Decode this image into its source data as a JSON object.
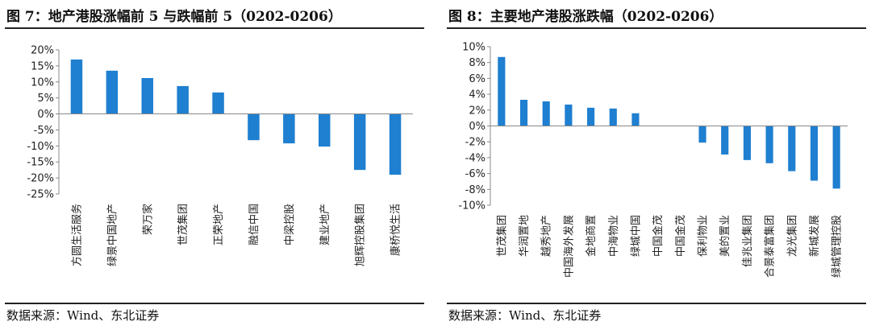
{
  "left": {
    "title": "图 7：地产港股涨幅前 5 与跌幅前 5（0202-0206）",
    "source": "数据来源：Wind、东北证券",
    "chart_data": {
      "type": "bar",
      "categories": [
        "方圆生活服务",
        "绿景中国地产",
        "荣万家",
        "世茂集团",
        "正荣地产",
        "融信中国",
        "中梁控股",
        "建业地产",
        "旭辉控股集团",
        "康桥悦生活"
      ],
      "values": [
        17.0,
        13.5,
        11.2,
        8.7,
        6.7,
        -8.2,
        -9.2,
        -10.2,
        -17.5,
        -19.0
      ],
      "ylim": [
        -25,
        20
      ],
      "yticks": [
        20,
        15,
        10,
        5,
        0,
        -5,
        -10,
        -15,
        -20,
        -25
      ],
      "ytick_labels": [
        "20%",
        "15%",
        "10%",
        "5%",
        "0%",
        "-5%",
        "-10%",
        "-15%",
        "-20%",
        "-25%"
      ],
      "color": "#1f7fd0"
    }
  },
  "right": {
    "title": "图 8：主要地产港股涨跌幅（0202-0206）",
    "source": "数据来源：Wind、东北证券",
    "chart_data": {
      "type": "bar",
      "categories": [
        "世茂集团",
        "华润置地",
        "越秀地产",
        "中国海外发展",
        "金地商置",
        "中海物业",
        "绿城中国",
        "中国金茂",
        "中国金茂",
        "保利物业",
        "美的置业",
        "佳兆业集团",
        "合景泰富集团",
        "龙光集团",
        "新城发展",
        "绿城管理控股"
      ],
      "values": [
        8.7,
        3.3,
        3.1,
        2.7,
        2.3,
        2.2,
        1.6,
        0.0,
        0.0,
        -2.1,
        -3.6,
        -4.3,
        -4.7,
        -5.7,
        -6.9,
        -7.9
      ],
      "ylim": [
        -10,
        10
      ],
      "yticks": [
        10,
        8,
        6,
        4,
        2,
        0,
        -2,
        -4,
        -6,
        -8,
        -10
      ],
      "ytick_labels": [
        "10%",
        "8%",
        "6%",
        "4%",
        "2%",
        "0%",
        "-2%",
        "-4%",
        "-6%",
        "-8%",
        "-10%"
      ],
      "color": "#1f7fd0"
    }
  }
}
